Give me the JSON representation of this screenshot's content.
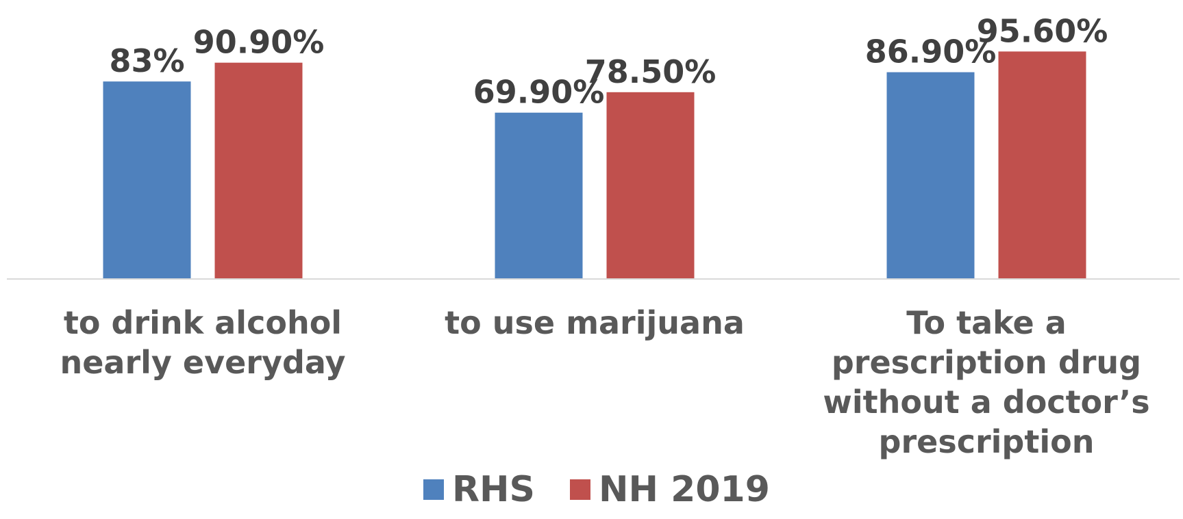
{
  "chart_data": {
    "type": "bar",
    "title": "",
    "xlabel": "",
    "ylabel": "",
    "categories": [
      [
        "to drink alcohol",
        "nearly everyday"
      ],
      [
        "to use marijuana"
      ],
      [
        "To take a",
        "prescription drug",
        "without a doctor’s",
        "prescription"
      ]
    ],
    "series": [
      {
        "name": "RHS",
        "color": "#4F81BD",
        "values": [
          83,
          69.9,
          86.9
        ],
        "labels": [
          "83%",
          "69.90%",
          "86.90%"
        ]
      },
      {
        "name": "NH 2019",
        "color": "#C0504D",
        "values": [
          90.9,
          78.5,
          95.6
        ],
        "labels": [
          "90.90%",
          "78.50%",
          "95.60%"
        ]
      }
    ],
    "ylim": [
      0,
      100
    ],
    "grid": false,
    "legend_position": "bottom"
  }
}
